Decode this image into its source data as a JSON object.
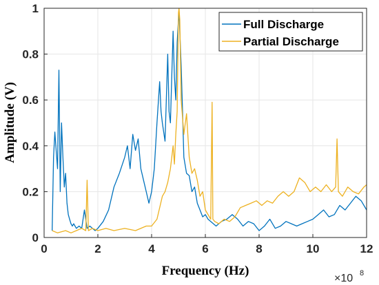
{
  "chart_data": {
    "type": "line",
    "title": "",
    "xlabel": "Frequency (Hz)",
    "ylabel": "Amplitude (V)",
    "x_exponent_base": "×10",
    "x_exponent_power": "8",
    "xlim": [
      0,
      12
    ],
    "ylim": [
      0,
      1
    ],
    "x_ticks": [
      "0",
      "2",
      "4",
      "6",
      "8",
      "10",
      "12"
    ],
    "y_ticks": [
      "0",
      "0.2",
      "0.4",
      "0.6",
      "0.8",
      "1"
    ],
    "grid": true,
    "legend_position": "top-right",
    "series": [
      {
        "name": "Full Discharge",
        "color": "#0072BD",
        "x": [
          0.3,
          0.35,
          0.4,
          0.45,
          0.5,
          0.55,
          0.6,
          0.65,
          0.7,
          0.75,
          0.8,
          0.85,
          0.9,
          0.95,
          1.0,
          1.05,
          1.1,
          1.2,
          1.3,
          1.4,
          1.5,
          1.6,
          1.7,
          1.8,
          1.9,
          2.0,
          2.2,
          2.4,
          2.6,
          2.8,
          3.0,
          3.1,
          3.2,
          3.3,
          3.4,
          3.5,
          3.6,
          3.7,
          3.8,
          3.9,
          4.0,
          4.1,
          4.2,
          4.3,
          4.35,
          4.4,
          4.5,
          4.6,
          4.65,
          4.7,
          4.8,
          4.85,
          4.9,
          4.95,
          5.0,
          5.02,
          5.05,
          5.1,
          5.15,
          5.2,
          5.3,
          5.4,
          5.5,
          5.6,
          5.7,
          5.8,
          5.9,
          6.0,
          6.1,
          6.2,
          6.4,
          6.6,
          6.8,
          7.0,
          7.2,
          7.4,
          7.6,
          7.8,
          8.0,
          8.2,
          8.4,
          8.6,
          8.8,
          9.0,
          9.2,
          9.4,
          9.6,
          9.8,
          10.0,
          10.2,
          10.4,
          10.6,
          10.8,
          11.0,
          11.2,
          11.4,
          11.6,
          11.8,
          12.0
        ],
        "values": [
          0.03,
          0.35,
          0.46,
          0.38,
          0.3,
          0.73,
          0.2,
          0.5,
          0.35,
          0.22,
          0.28,
          0.15,
          0.1,
          0.08,
          0.06,
          0.05,
          0.06,
          0.04,
          0.05,
          0.04,
          0.12,
          0.04,
          0.05,
          0.04,
          0.03,
          0.04,
          0.07,
          0.12,
          0.22,
          0.28,
          0.35,
          0.4,
          0.3,
          0.45,
          0.38,
          0.43,
          0.3,
          0.25,
          0.2,
          0.15,
          0.2,
          0.3,
          0.5,
          0.68,
          0.55,
          0.5,
          0.42,
          0.8,
          0.55,
          0.5,
          0.9,
          0.7,
          0.6,
          0.85,
          0.95,
          0.99,
          0.9,
          0.75,
          0.55,
          0.35,
          0.28,
          0.27,
          0.2,
          0.22,
          0.15,
          0.12,
          0.09,
          0.1,
          0.08,
          0.07,
          0.05,
          0.07,
          0.08,
          0.1,
          0.08,
          0.05,
          0.07,
          0.06,
          0.03,
          0.05,
          0.08,
          0.04,
          0.05,
          0.07,
          0.06,
          0.05,
          0.06,
          0.07,
          0.08,
          0.1,
          0.12,
          0.09,
          0.1,
          0.14,
          0.12,
          0.15,
          0.18,
          0.16,
          0.12
        ]
      },
      {
        "name": "Partial Discharge",
        "color": "#EDB120",
        "x": [
          0.3,
          0.5,
          0.8,
          1.0,
          1.2,
          1.4,
          1.55,
          1.6,
          1.65,
          1.8,
          2.0,
          2.3,
          2.6,
          3.0,
          3.4,
          3.8,
          4.0,
          4.2,
          4.4,
          4.5,
          4.6,
          4.7,
          4.8,
          4.85,
          4.9,
          4.95,
          5.0,
          5.02,
          5.05,
          5.1,
          5.2,
          5.3,
          5.4,
          5.5,
          5.6,
          5.7,
          5.8,
          5.9,
          6.0,
          6.1,
          6.2,
          6.25,
          6.28,
          6.35,
          6.5,
          6.7,
          6.9,
          7.1,
          7.3,
          7.5,
          7.7,
          7.9,
          8.1,
          8.3,
          8.5,
          8.7,
          8.9,
          9.1,
          9.3,
          9.5,
          9.7,
          9.9,
          10.1,
          10.3,
          10.5,
          10.7,
          10.85,
          10.9,
          10.95,
          11.1,
          11.3,
          11.5,
          11.7,
          11.9,
          12.0
        ],
        "values": [
          0.03,
          0.02,
          0.03,
          0.02,
          0.03,
          0.04,
          0.03,
          0.25,
          0.03,
          0.04,
          0.03,
          0.04,
          0.03,
          0.04,
          0.03,
          0.05,
          0.05,
          0.08,
          0.18,
          0.2,
          0.24,
          0.3,
          0.4,
          0.32,
          0.45,
          0.55,
          0.98,
          1.0,
          0.95,
          0.6,
          0.45,
          0.54,
          0.35,
          0.28,
          0.3,
          0.25,
          0.18,
          0.2,
          0.12,
          0.1,
          0.08,
          0.59,
          0.08,
          0.07,
          0.06,
          0.08,
          0.07,
          0.09,
          0.13,
          0.14,
          0.15,
          0.16,
          0.14,
          0.16,
          0.15,
          0.18,
          0.2,
          0.18,
          0.2,
          0.26,
          0.24,
          0.2,
          0.22,
          0.2,
          0.23,
          0.2,
          0.22,
          0.43,
          0.2,
          0.18,
          0.22,
          0.2,
          0.19,
          0.22,
          0.23
        ]
      }
    ]
  }
}
